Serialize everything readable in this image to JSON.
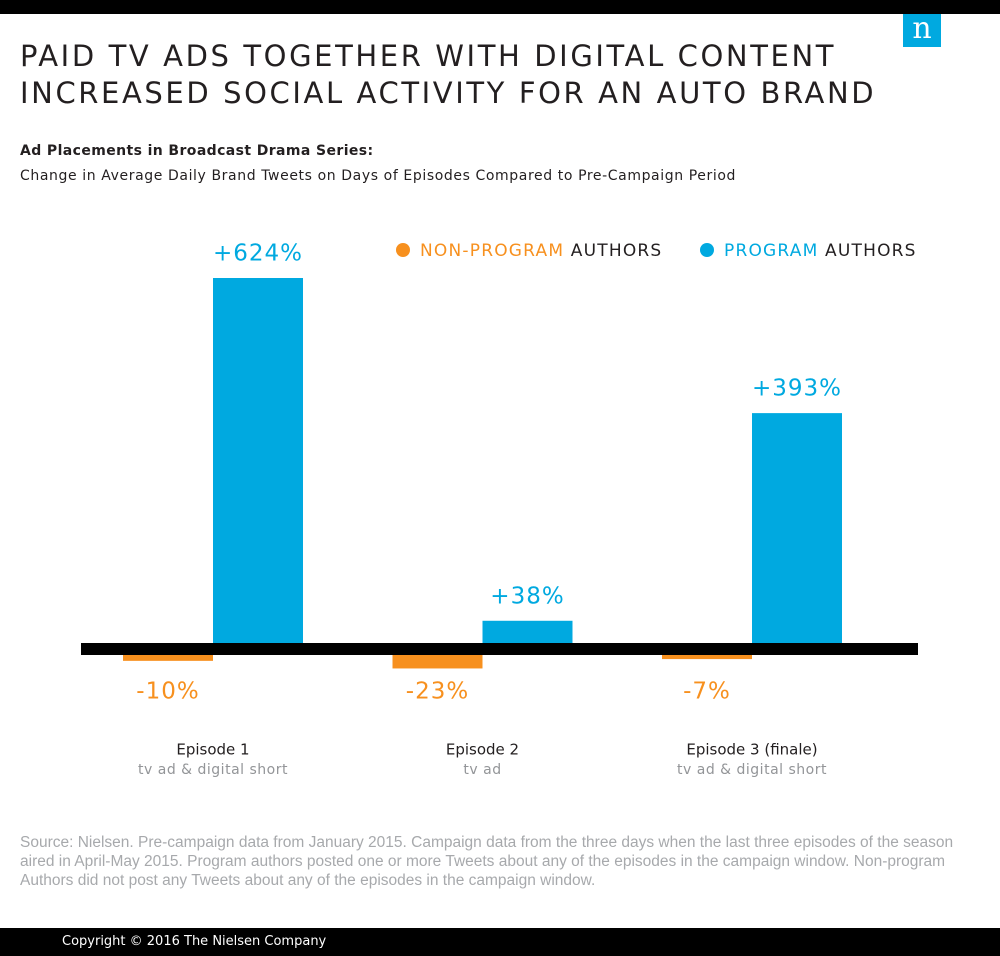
{
  "logo": "n",
  "chart_data": {
    "type": "bar",
    "title": "PAID TV ADS TOGETHER WITH DIGITAL CONTENT INCREASED SOCIAL ACTIVITY FOR AN AUTO BRAND",
    "subtitle": "Ad Placements in Broadcast Drama Series:",
    "description": "Change in Average Daily Brand Tweets on Days of Episodes Compared to Pre-Campaign Period",
    "categories": [
      "Episode 1",
      "Episode 2",
      "Episode 3 (finale)"
    ],
    "category_subtitles": [
      "tv ad & digital short",
      "tv ad",
      "tv ad & digital short"
    ],
    "series": [
      {
        "name": "NON-PROGRAM AUTHORS",
        "color": "#f7901e",
        "values": [
          -10,
          -23,
          -7
        ],
        "value_labels": [
          "-10%",
          "-23%",
          "-7%"
        ]
      },
      {
        "name": "PROGRAM AUTHORS",
        "color": "#00a9e0",
        "values": [
          624,
          38,
          393
        ],
        "value_labels": [
          "+624%",
          "+38%",
          "+393%"
        ]
      }
    ],
    "source": "Source: Nielsen. Pre-campaign data from January 2015. Campaign data from the three days when the last three episodes of the season aired in April-May 2015. Program authors posted one or more Tweets about any of the episodes in the campaign window. Non-program Authors did not post any Tweets about any of the episodes in the campaign window.",
    "copyright": "Copyright © 2016 The Nielsen Company"
  }
}
